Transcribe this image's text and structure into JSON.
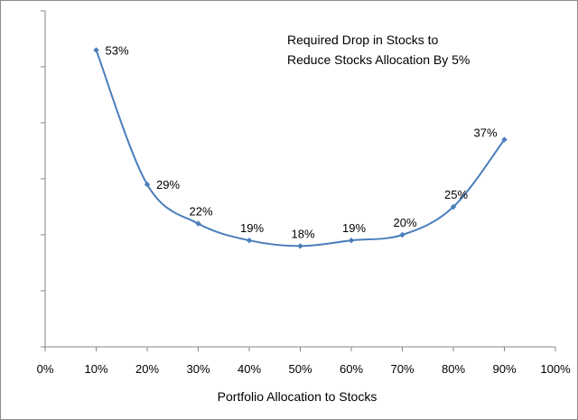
{
  "chart_data": {
    "type": "line",
    "title_lines": [
      "Required Drop in Stocks to",
      "Reduce Stocks Allocation By 5%"
    ],
    "xlabel": "Portfolio Allocation to Stocks",
    "ylabel": "",
    "x_ticks": [
      "0%",
      "10%",
      "20%",
      "30%",
      "40%",
      "50%",
      "60%",
      "70%",
      "80%",
      "90%",
      "100%"
    ],
    "xlim": [
      0,
      100
    ],
    "ylim": [
      0,
      60
    ],
    "y_tick_step": 10,
    "y_tick_labels_shown": false,
    "gridlines": false,
    "series": [
      {
        "name": "Required Drop",
        "color": "#4a7ebb",
        "x": [
          10,
          20,
          30,
          40,
          50,
          60,
          70,
          80,
          90
        ],
        "values": [
          53,
          29,
          22,
          19,
          18,
          19,
          20,
          25,
          37
        ],
        "labels": [
          "53%",
          "29%",
          "22%",
          "19%",
          "18%",
          "19%",
          "20%",
          "25%",
          "37%"
        ],
        "label_positions": [
          "right",
          "right",
          "above",
          "above",
          "above",
          "above",
          "above",
          "above",
          "above-left"
        ]
      }
    ]
  }
}
